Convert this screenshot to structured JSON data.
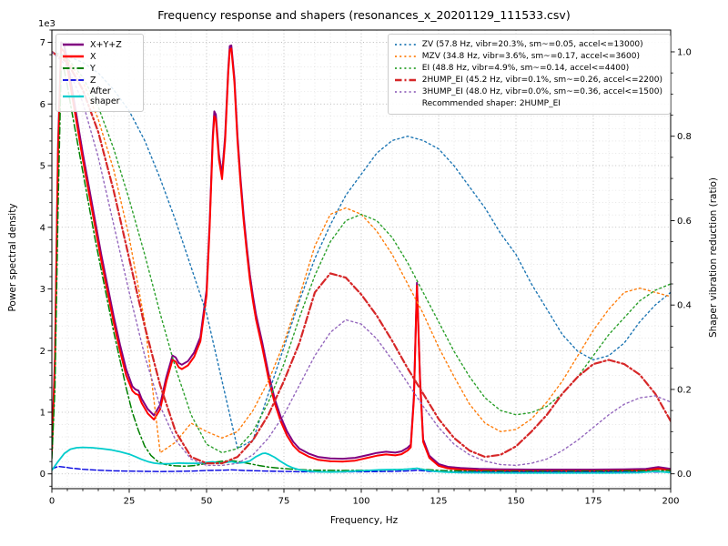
{
  "chart_data": {
    "type": "line",
    "title": "Frequency response and shapers (resonances_x_20201129_111533.csv)",
    "xlabel": "Frequency, Hz",
    "ylabel_left": "Power spectral density",
    "ylabel_right": "Shaper vibration reduction (ratio)",
    "offset_label": "1e3",
    "xlim": [
      0,
      200
    ],
    "ylim_left": [
      -240,
      7200
    ],
    "ylim_right": [
      -0.0352,
      1.0517
    ],
    "xticks": [
      0,
      25,
      50,
      75,
      100,
      125,
      150,
      175,
      200
    ],
    "xtick_labels": [
      "0",
      "25",
      "50",
      "75",
      "100",
      "125",
      "150",
      "175",
      "200"
    ],
    "xtick_minor_step": 5,
    "yticks_left": [
      0,
      1000,
      2000,
      3000,
      4000,
      5000,
      6000,
      7000
    ],
    "ytick_labels_left": [
      "0",
      "1",
      "2",
      "3",
      "4",
      "5",
      "6",
      "7"
    ],
    "ytick_minor_step_left": 200,
    "yticks_right": [
      0,
      0.2,
      0.4,
      0.6,
      0.8,
      1.0
    ],
    "ytick_labels_right": [
      "0.0",
      "0.2",
      "0.4",
      "0.6",
      "0.8",
      "1.0"
    ],
    "ytick_minor_step_right": 0.05,
    "major_grid_color": "#b0b0b0",
    "minor_grid_color": "#d6d6d6",
    "legend_right_note": "Recommended shaper: 2HUMP_EI",
    "series_left": [
      {
        "key": "xyz",
        "name": "X+Y+Z",
        "color": "#800080",
        "style": "solid",
        "width": 2,
        "x": [
          0,
          1,
          2,
          3,
          4,
          5,
          6,
          8,
          10,
          12,
          14,
          16,
          18,
          20,
          22,
          24,
          26,
          27,
          28,
          29,
          31,
          33,
          35,
          37,
          39,
          40,
          41,
          42,
          44,
          46,
          48,
          50,
          51,
          52,
          52.5,
          53,
          54,
          55,
          56,
          57,
          57.5,
          58,
          59,
          60,
          61,
          62,
          63,
          64,
          65,
          66,
          68,
          70,
          72,
          74,
          76,
          78,
          80,
          83,
          86,
          90,
          94,
          98,
          102,
          105,
          108,
          111,
          113,
          115,
          116,
          117,
          118,
          119,
          120,
          122,
          125,
          128,
          132,
          138,
          145,
          155,
          165,
          175,
          185,
          192,
          196,
          200
        ],
        "y": [
          380,
          1900,
          5350,
          7000,
          6950,
          6700,
          6400,
          5800,
          5200,
          4650,
          4100,
          3550,
          3050,
          2550,
          2100,
          1700,
          1420,
          1370,
          1350,
          1220,
          1050,
          950,
          1120,
          1570,
          1920,
          1890,
          1800,
          1770,
          1830,
          1970,
          2220,
          2980,
          4080,
          5480,
          5880,
          5830,
          5180,
          4860,
          5480,
          6560,
          6940,
          6950,
          6420,
          5480,
          4780,
          4180,
          3680,
          3230,
          2880,
          2580,
          2130,
          1630,
          1220,
          920,
          690,
          520,
          410,
          330,
          275,
          250,
          245,
          260,
          305,
          340,
          360,
          345,
          365,
          425,
          475,
          1250,
          3100,
          1550,
          560,
          295,
          160,
          115,
          95,
          80,
          75,
          70,
          70,
          70,
          75,
          80,
          110,
          80
        ]
      },
      {
        "key": "x",
        "name": "X",
        "color": "#ff0000",
        "style": "solid",
        "width": 2,
        "x": [
          0,
          1,
          2,
          3,
          4,
          5,
          6,
          8,
          10,
          12,
          14,
          16,
          18,
          20,
          22,
          24,
          26,
          27,
          28,
          29,
          31,
          33,
          35,
          37,
          39,
          40,
          41,
          42,
          44,
          46,
          48,
          50,
          51,
          52,
          52.5,
          53,
          54,
          55,
          56,
          57,
          57.5,
          58,
          59,
          60,
          61,
          62,
          63,
          64,
          65,
          66,
          68,
          70,
          72,
          74,
          76,
          78,
          80,
          83,
          86,
          90,
          94,
          98,
          102,
          105,
          108,
          111,
          113,
          115,
          116,
          117,
          118,
          119,
          120,
          122,
          125,
          128,
          132,
          138,
          145,
          155,
          165,
          175,
          185,
          192,
          196,
          200
        ],
        "y": [
          350,
          1800,
          5200,
          6900,
          6850,
          6600,
          6300,
          5700,
          5100,
          4550,
          4000,
          3450,
          2950,
          2450,
          2000,
          1600,
          1350,
          1300,
          1280,
          1150,
          980,
          880,
          1050,
          1500,
          1850,
          1820,
          1730,
          1700,
          1760,
          1900,
          2150,
          2900,
          4000,
          5400,
          5800,
          5750,
          5100,
          4780,
          5400,
          6500,
          6880,
          6900,
          6350,
          5400,
          4700,
          4100,
          3600,
          3150,
          2800,
          2500,
          2050,
          1550,
          1150,
          850,
          620,
          460,
          360,
          280,
          230,
          205,
          200,
          215,
          260,
          295,
          315,
          300,
          320,
          380,
          430,
          1200,
          3050,
          1500,
          520,
          260,
          130,
          90,
          70,
          55,
          50,
          45,
          45,
          45,
          50,
          55,
          85,
          55
        ]
      },
      {
        "key": "y",
        "name": "Y",
        "color": "#008000",
        "style": "dashdot",
        "width": 1.5,
        "x": [
          0,
          1,
          2,
          3,
          4,
          5,
          6,
          8,
          10,
          12,
          14,
          16,
          18,
          20,
          22,
          24,
          26,
          28,
          30,
          32,
          34,
          36,
          38,
          40,
          43,
          46,
          49,
          52,
          55,
          58,
          61,
          64,
          67,
          70,
          74,
          78,
          85,
          95,
          105,
          112,
          116,
          118,
          120,
          125,
          135,
          150,
          165,
          180,
          190,
          200
        ],
        "y": [
          250,
          1400,
          4300,
          6600,
          6550,
          6300,
          6000,
          5450,
          4900,
          4350,
          3800,
          3300,
          2800,
          2300,
          1850,
          1400,
          1000,
          700,
          450,
          300,
          210,
          160,
          140,
          130,
          125,
          135,
          160,
          185,
          205,
          215,
          195,
          165,
          135,
          110,
          90,
          75,
          60,
          55,
          60,
          70,
          80,
          90,
          75,
          55,
          45,
          40,
          40,
          45,
          50,
          55
        ]
      },
      {
        "key": "z",
        "name": "Z",
        "color": "#0000e0",
        "style": "dashed",
        "width": 1.4,
        "x": [
          0,
          2,
          4,
          6,
          8,
          10,
          15,
          20,
          25,
          30,
          35,
          40,
          45,
          50,
          55,
          58,
          62,
          70,
          80,
          90,
          100,
          110,
          116,
          118,
          122,
          130,
          145,
          160,
          175,
          190,
          200
        ],
        "y": [
          80,
          120,
          110,
          95,
          85,
          75,
          60,
          50,
          45,
          40,
          38,
          40,
          45,
          55,
          60,
          65,
          55,
          45,
          35,
          30,
          35,
          40,
          50,
          60,
          40,
          30,
          28,
          28,
          28,
          30,
          30
        ]
      },
      {
        "key": "after-shaper",
        "name": "After shaper",
        "color": "#00cccc",
        "style": "solid",
        "width": 1.8,
        "x": [
          0,
          2,
          4,
          6,
          8,
          10,
          13,
          16,
          19,
          22,
          25,
          27,
          29,
          31,
          33,
          35,
          38,
          41,
          44,
          47,
          50,
          52,
          54,
          56,
          58,
          60,
          62,
          64,
          66,
          68,
          69,
          70,
          72,
          74,
          76,
          78,
          80,
          83,
          86,
          90,
          94,
          98,
          102,
          106,
          110,
          113,
          116,
          118,
          120,
          123,
          127,
          132,
          140,
          150,
          160,
          170,
          180,
          190,
          195,
          198,
          200
        ],
        "y": [
          60,
          200,
          330,
          400,
          425,
          430,
          425,
          410,
          390,
          360,
          320,
          280,
          235,
          200,
          175,
          165,
          165,
          175,
          170,
          170,
          185,
          195,
          175,
          185,
          200,
          175,
          185,
          210,
          280,
          330,
          335,
          320,
          270,
          200,
          140,
          95,
          65,
          45,
          35,
          30,
          35,
          45,
          55,
          65,
          70,
          70,
          80,
          90,
          70,
          45,
          30,
          22,
          18,
          16,
          15,
          15,
          16,
          22,
          40,
          30,
          22
        ]
      }
    ],
    "shaper_x": [
      0,
      5,
      10,
      15,
      20,
      25,
      30,
      35,
      40,
      45,
      50,
      55,
      60,
      65,
      70,
      75,
      80,
      85,
      90,
      95,
      100,
      105,
      110,
      115,
      120,
      125,
      130,
      135,
      140,
      145,
      150,
      155,
      160,
      165,
      170,
      175,
      180,
      185,
      190,
      195,
      200
    ],
    "series_right": [
      {
        "key": "zv",
        "name": "ZV (57.8 Hz, vibr=20.3%, sm~=0.05, accel<=13000)",
        "color": "#1f77b4",
        "style": "dotted",
        "width": 1.4,
        "y": [
          1.0,
          0.99,
          0.975,
          0.95,
          0.91,
          0.86,
          0.79,
          0.7,
          0.6,
          0.49,
          0.38,
          0.22,
          0.06,
          0.08,
          0.19,
          0.3,
          0.41,
          0.51,
          0.59,
          0.66,
          0.71,
          0.76,
          0.79,
          0.8,
          0.79,
          0.77,
          0.73,
          0.68,
          0.63,
          0.57,
          0.52,
          0.45,
          0.39,
          0.33,
          0.29,
          0.27,
          0.28,
          0.31,
          0.36,
          0.4,
          0.43
        ]
      },
      {
        "key": "mzv",
        "name": "MZV (34.8 Hz, vibr=3.6%, sm~=0.17, accel<=3600)",
        "color": "#ff7f0e",
        "style": "dotted",
        "width": 1.4,
        "y": [
          1.0,
          0.98,
          0.93,
          0.84,
          0.72,
          0.56,
          0.36,
          0.05,
          0.075,
          0.12,
          0.1,
          0.085,
          0.1,
          0.15,
          0.22,
          0.31,
          0.42,
          0.54,
          0.615,
          0.63,
          0.615,
          0.575,
          0.52,
          0.45,
          0.38,
          0.3,
          0.23,
          0.165,
          0.12,
          0.1,
          0.105,
          0.13,
          0.17,
          0.22,
          0.28,
          0.34,
          0.39,
          0.43,
          0.44,
          0.43,
          0.42
        ]
      },
      {
        "key": "ei",
        "name": "EI (48.8 Hz, vibr=4.9%, sm~=0.14, accel<=4400)",
        "color": "#2ca02c",
        "style": "dotted",
        "width": 1.4,
        "y": [
          1.0,
          0.985,
          0.94,
          0.87,
          0.77,
          0.65,
          0.52,
          0.38,
          0.25,
          0.14,
          0.07,
          0.05,
          0.06,
          0.1,
          0.17,
          0.26,
          0.37,
          0.47,
          0.55,
          0.6,
          0.615,
          0.6,
          0.56,
          0.5,
          0.43,
          0.36,
          0.29,
          0.23,
          0.18,
          0.15,
          0.14,
          0.145,
          0.16,
          0.19,
          0.23,
          0.28,
          0.33,
          0.37,
          0.41,
          0.435,
          0.45
        ]
      },
      {
        "key": "2hump-ei",
        "name": "2HUMP_EI (45.2 Hz, vibr=0.1%, sm~=0.26, accel<=2200)",
        "color": "#d62728",
        "style": "dashdot",
        "width": 2.2,
        "y": [
          1.0,
          0.975,
          0.91,
          0.81,
          0.67,
          0.51,
          0.35,
          0.21,
          0.1,
          0.04,
          0.025,
          0.025,
          0.04,
          0.08,
          0.14,
          0.22,
          0.31,
          0.43,
          0.475,
          0.465,
          0.425,
          0.375,
          0.315,
          0.25,
          0.19,
          0.13,
          0.085,
          0.055,
          0.04,
          0.045,
          0.065,
          0.1,
          0.14,
          0.19,
          0.23,
          0.26,
          0.27,
          0.26,
          0.235,
          0.19,
          0.125
        ]
      },
      {
        "key": "3hump-ei",
        "name": "3HUMP_EI (48.0 Hz, vibr=0.0%, sm~=0.36, accel<=1500)",
        "color": "#9467bd",
        "style": "dotted",
        "width": 1.4,
        "y": [
          1.0,
          0.965,
          0.88,
          0.75,
          0.59,
          0.43,
          0.28,
          0.16,
          0.08,
          0.035,
          0.02,
          0.02,
          0.025,
          0.045,
          0.085,
          0.14,
          0.21,
          0.28,
          0.335,
          0.365,
          0.355,
          0.32,
          0.27,
          0.215,
          0.16,
          0.11,
          0.07,
          0.045,
          0.03,
          0.022,
          0.02,
          0.025,
          0.035,
          0.055,
          0.08,
          0.11,
          0.14,
          0.165,
          0.18,
          0.185,
          0.17
        ]
      }
    ]
  }
}
